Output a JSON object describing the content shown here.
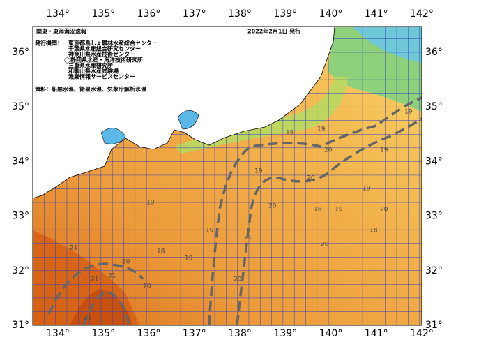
{
  "map": {
    "title": "関東・東海海況速報",
    "issue_date": "2022年2月1日 発行",
    "issuers_heading": "発行機関：",
    "issuers": [
      "東京都島しょ農林水産総合センター",
      "千葉県水産総合研究センター",
      "神奈川県水産技術センター",
      "◯静岡県水産・海洋技術研究所",
      "三重県水産研究所",
      "和歌山県水産試験場",
      "漁業情報サービスセンター"
    ],
    "source": "資料：船舶水温、衛星水温、気象庁解析水温",
    "longitude_labels": [
      "134°",
      "135°",
      "136°",
      "137°",
      "138°",
      "139°",
      "140°",
      "141°",
      "142°"
    ],
    "latitude_labels": [
      "36°",
      "35°",
      "34°",
      "33°",
      "32°",
      "31°"
    ],
    "contour_labels": [
      "19",
      "19",
      "20",
      "20",
      "19",
      "19",
      "20",
      "21",
      "19",
      "20",
      "21",
      "18",
      "19",
      "21",
      "20",
      "19",
      "18",
      "20",
      "21",
      "19",
      "20",
      "19",
      "18",
      "19",
      "20",
      "21"
    ]
  }
}
